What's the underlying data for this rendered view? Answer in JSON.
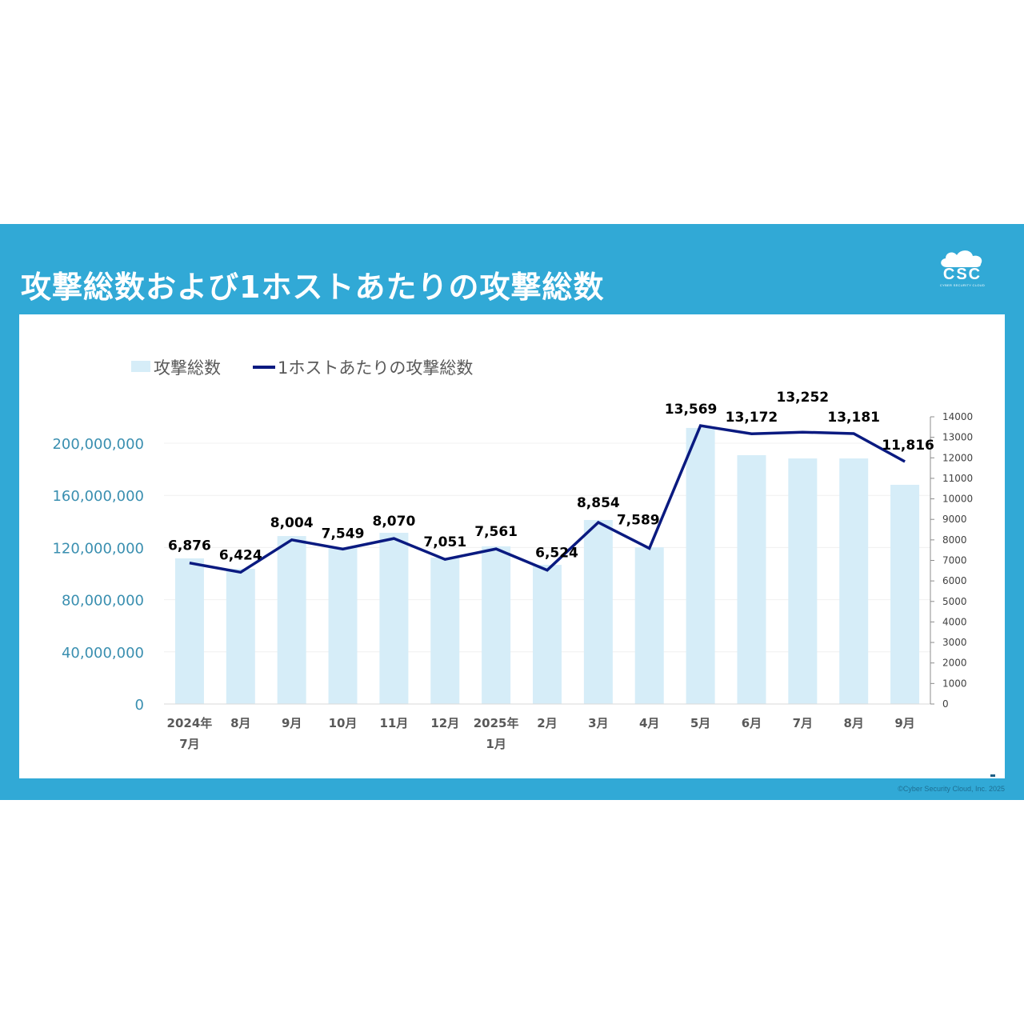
{
  "slide": {
    "title": "攻撃総数および1ホストあたりの攻撃総数",
    "logo": {
      "text": "CSC",
      "subtext": "CYBER SECURITY CLOUD"
    },
    "footer": "©Cyber Security Cloud, Inc. 2025"
  },
  "legend": {
    "bar_label": "攻撃総数",
    "line_label": "1ホストあたりの攻撃総数"
  },
  "colors": {
    "background_band": "#31a9d6",
    "bar": "#d6edf8",
    "line": "#0a1a80",
    "left_axis_text": "#3a8fb0",
    "right_axis_text": "#404040",
    "category_text": "#595959",
    "data_label": "#000000"
  },
  "chart_data": {
    "type": "bar+line",
    "title": "攻撃総数および1ホストあたりの攻撃総数",
    "categories": [
      "2024年\n7月",
      "8月",
      "9月",
      "10月",
      "11月",
      "12月",
      "2025年\n1月",
      "2月",
      "3月",
      "4月",
      "5月",
      "6月",
      "7月",
      "8月",
      "9月"
    ],
    "category_lines": [
      [
        "2024年",
        "7月"
      ],
      [
        "8月"
      ],
      [
        "9月"
      ],
      [
        "10月"
      ],
      [
        "11月"
      ],
      [
        "12月"
      ],
      [
        "2025年",
        "1月"
      ],
      [
        "2月"
      ],
      [
        "3月"
      ],
      [
        "4月"
      ],
      [
        "5月"
      ],
      [
        "6月"
      ],
      [
        "7月"
      ],
      [
        "8月"
      ],
      [
        "9月"
      ]
    ],
    "series": [
      {
        "name": "攻撃総数",
        "type": "bar",
        "axis": "left",
        "values": [
          111700000,
          103700000,
          128800000,
          120200000,
          131300000,
          112300000,
          120900000,
          106700000,
          141100000,
          120200000,
          211700000,
          190800000,
          188300000,
          188300000,
          168100000
        ]
      },
      {
        "name": "1ホストあたりの攻撃総数",
        "type": "line",
        "axis": "right",
        "values": [
          6876,
          6424,
          8004,
          7549,
          8070,
          7051,
          7561,
          6524,
          8854,
          7589,
          13569,
          13172,
          13252,
          13181,
          11816
        ],
        "labels": [
          "6,876",
          "6,424",
          "8,004",
          "7,549",
          "8,070",
          "7,051",
          "7,561",
          "6,524",
          "8,854",
          "7,589",
          "13,569",
          "13,172",
          "13,252",
          "13,181",
          "11,816"
        ]
      }
    ],
    "left_axis": {
      "ticks": [
        0,
        40000000,
        80000000,
        120000000,
        160000000,
        200000000
      ],
      "tick_labels": [
        "0",
        "40,000,000",
        "80,000,000",
        "120,000,000",
        "160,000,000",
        "200,000,000"
      ],
      "ylim": [
        0,
        200000000
      ]
    },
    "right_axis": {
      "ticks": [
        0,
        1000,
        2000,
        3000,
        4000,
        5000,
        6000,
        7000,
        8000,
        9000,
        10000,
        11000,
        12000,
        13000,
        14000
      ],
      "tick_labels": [
        "0",
        "1000",
        "2000",
        "3000",
        "4000",
        "5000",
        "6000",
        "7000",
        "8000",
        "9000",
        "10000",
        "11000",
        "12000",
        "13000",
        "14000"
      ],
      "ylim": [
        0,
        14000
      ]
    },
    "legend_position": "top-left",
    "grid": true
  }
}
